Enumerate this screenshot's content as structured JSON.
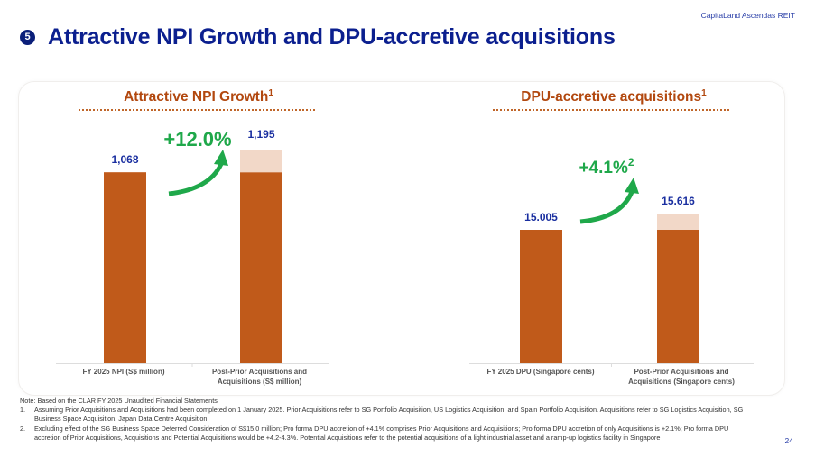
{
  "header": {
    "brand": "CapitaLand Ascendas REIT",
    "section_number": "5",
    "title": "Attractive NPI Growth and DPU-accretive acquisitions"
  },
  "colors": {
    "base_bar": "#c05a1a",
    "increment_bar": "#f2d8c8",
    "value_label": "#1a2fa0",
    "growth_label": "#1fa84a",
    "section_title": "#b2480f",
    "title": "#0b1f8f"
  },
  "chart_data": [
    {
      "type": "bar",
      "title": "Attractive NPI Growth",
      "title_footnote": "1",
      "categories": [
        "FY 2025 NPI (S$ million)",
        "Post-Prior Acquisitions and Acquisitions (S$ million)"
      ],
      "category_lines": [
        [
          "FY 2025 NPI (S$ million)"
        ],
        [
          "Post-Prior Acquisitions and",
          "Acquisitions (S$ million)"
        ]
      ],
      "series": [
        {
          "name": "Base",
          "values": [
            1068,
            1068
          ]
        },
        {
          "name": "Increment",
          "values": [
            0,
            127
          ]
        }
      ],
      "totals": [
        1068,
        1195
      ],
      "value_labels": [
        "1,068",
        "1,195"
      ],
      "growth_label": "+12.0%",
      "growth_footnote": "",
      "ylim": [
        0,
        1200
      ],
      "xlabel": "",
      "ylabel": "",
      "grid": false
    },
    {
      "type": "bar",
      "title": "DPU-accretive acquisitions",
      "title_footnote": "1",
      "categories": [
        "FY 2025 DPU (Singapore cents)",
        "Post-Prior Acquisitions and Acquisitions (Singapore cents)"
      ],
      "category_lines": [
        [
          "FY 2025 DPU (Singapore cents)"
        ],
        [
          "Post-Prior Acquisitions and",
          "Acquisitions (Singapore cents)"
        ]
      ],
      "series": [
        {
          "name": "Base",
          "values": [
            15.005,
            15.005
          ]
        },
        {
          "name": "Increment",
          "values": [
            0,
            0.611
          ]
        }
      ],
      "totals": [
        15.005,
        15.616
      ],
      "value_labels": [
        "15.005",
        "15.616"
      ],
      "growth_label": "+4.1%",
      "growth_footnote": "2",
      "ylim": [
        0,
        15.616
      ],
      "xlabel": "",
      "ylabel": "",
      "grid": false
    }
  ],
  "notes": {
    "intro": "Note: Based on the CLAR FY 2025 Unaudited Financial Statements",
    "items": [
      {
        "num": "1.",
        "text": "Assuming Prior Acquisitions and Acquisitions had been completed on 1 January 2025. Prior Acquisitions refer to SG Portfolio Acquisition, US Logistics Acquisition, and Spain Portfolio Acquisition. Acquisitions refer to SG Logistics Acquisition, SG Business Space Acquisition, Japan Data Centre Acquisition."
      },
      {
        "num": "2.",
        "text": "Excluding effect of the SG Business Space Deferred Consideration of S$15.0 million; Pro forma DPU accretion of +4.1% comprises Prior Acquisitions and Acquisitions; Pro forma DPU accretion of only Acquisitions is +2.1%; Pro forma DPU accretion of Prior Acquisitions, Acquisitions and Potential Acquisitions would be +4.2-4.3%. Potential Acquisitions refer to the potential acquisitions of a light industrial asset and a ramp-up logistics facility in Singapore"
      }
    ]
  },
  "page_number": "24"
}
